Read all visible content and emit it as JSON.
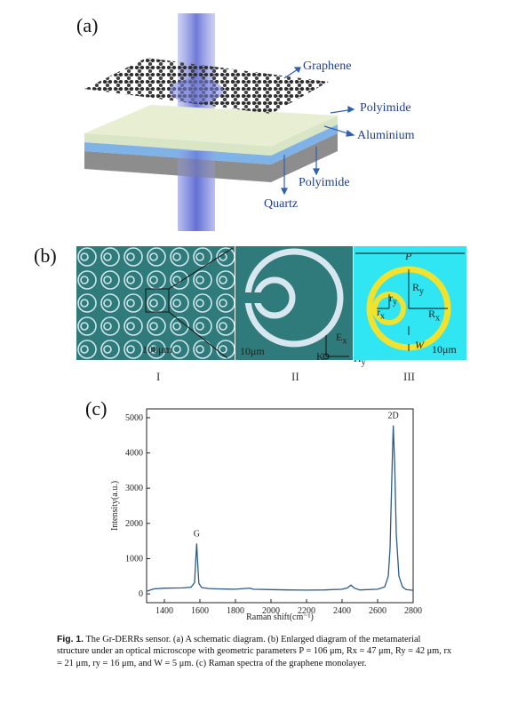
{
  "panel_a": {
    "label": "(a)",
    "layers": {
      "graphene": "Graphene",
      "polyimide_top": "Polyimide",
      "aluminium": "Aluminium",
      "polyimide_bottom": "Polyimide",
      "quartz": "Quartz"
    },
    "colors": {
      "beam": "#6c77d6",
      "graphene": "#333333",
      "aluminium": "#7fb2e6",
      "quartz": "#8a8a8a"
    }
  },
  "panel_b": {
    "label": "(b)",
    "sub_i": {
      "roman": "I",
      "scale": "100μm"
    },
    "sub_ii": {
      "roman": "II",
      "scale": "10μm",
      "axis_e": "E",
      "axis_e_sub": "x",
      "axis_h": "H",
      "axis_h_sub": "y",
      "axis_k": "K"
    },
    "sub_iii": {
      "roman": "III",
      "scale": "10μm",
      "P": "P",
      "Ry": "R",
      "Ry_sub": "y",
      "Rx": "R",
      "Rx_sub": "x",
      "ry": "r",
      "ry_sub": "y",
      "rx": "r",
      "rx_sub": "x",
      "W": "W"
    },
    "colors": {
      "teal": "#2f7a7a",
      "cyan": "#2fe6f2",
      "yellow": "#f2e22e"
    }
  },
  "panel_c": {
    "label": "(c)",
    "peak_g": "G",
    "peak_2d": "2D"
  },
  "chart_data": {
    "type": "line",
    "xlabel": "Raman shift(cm⁻¹)",
    "ylabel": "Intensity(a.u.)",
    "xlim": [
      1300,
      2800
    ],
    "ylim": [
      -250,
      5250
    ],
    "xticks": [
      1400,
      1600,
      1800,
      2000,
      2200,
      2400,
      2600,
      2800
    ],
    "yticks": [
      0,
      1000,
      2000,
      3000,
      4000,
      5000
    ],
    "series": [
      {
        "color": "#2b5b8c",
        "x": [
          1300,
          1340,
          1400,
          1500,
          1550,
          1570,
          1578,
          1582,
          1586,
          1594,
          1610,
          1650,
          1700,
          1800,
          1880,
          1900,
          2000,
          2100,
          2200,
          2300,
          2400,
          2430,
          2450,
          2470,
          2500,
          2600,
          2640,
          2660,
          2670,
          2680,
          2688,
          2696,
          2705,
          2720,
          2740,
          2760,
          2800
        ],
        "values": [
          70,
          140,
          160,
          170,
          190,
          320,
          1100,
          1430,
          1000,
          300,
          180,
          150,
          140,
          130,
          165,
          130,
          120,
          110,
          105,
          110,
          130,
          170,
          250,
          160,
          110,
          130,
          200,
          500,
          1300,
          3300,
          4780,
          3700,
          1700,
          500,
          200,
          120,
          100
        ]
      }
    ]
  },
  "caption": {
    "fig": "Fig. 1.",
    "text": " The Gr-DERRs sensor.  (a) A schematic diagram.  (b) Enlarged diagram of the metamaterial structure under an optical microscope with geometric parameters P = 106 μm, Rx = 47 μm, Ry = 42 μm, rx = 21 μm, ry = 16 μm, and W = 5 μm.  (c) Raman spectra of the graphene monolayer."
  }
}
